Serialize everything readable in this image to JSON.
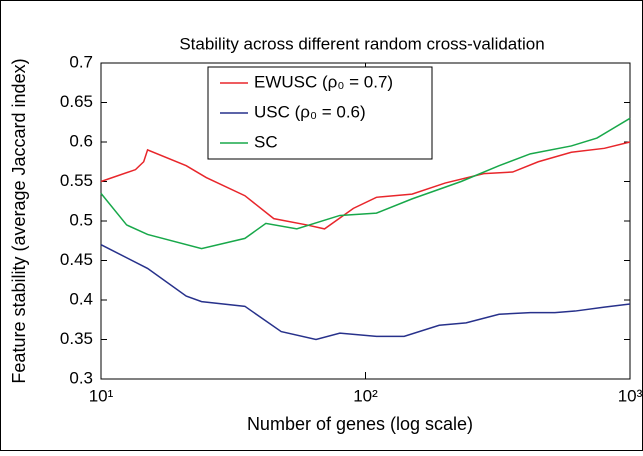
{
  "chart_data": {
    "type": "line",
    "title": "Stability across different random cross-validation",
    "xlabel": "Number of genes (log scale)",
    "ylabel": "Feature stability (average Jaccard index)",
    "xscale": "log",
    "xlim": [
      10,
      1000
    ],
    "xticks": [
      {
        "value": 10,
        "label": "10¹"
      },
      {
        "value": 100,
        "label": "10²"
      },
      {
        "value": 1000,
        "label": "10³"
      }
    ],
    "ylim": [
      0.3,
      0.7
    ],
    "yticks": [
      0.3,
      0.35,
      0.4,
      0.45,
      0.5,
      0.55,
      0.6,
      0.65,
      0.7
    ],
    "legend": "upper center",
    "series": [
      {
        "name": "EWUSC (ρ₀ = 0.7)",
        "color": "#e8262b",
        "x": [
          10,
          13.5,
          14.5,
          15,
          21,
          25,
          35,
          45,
          60,
          70,
          90,
          110,
          150,
          200,
          280,
          360,
          450,
          600,
          800,
          1000
        ],
        "values": [
          0.55,
          0.565,
          0.575,
          0.59,
          0.57,
          0.555,
          0.532,
          0.503,
          0.495,
          0.49,
          0.516,
          0.53,
          0.534,
          0.548,
          0.56,
          0.562,
          0.575,
          0.587,
          0.592,
          0.6
        ]
      },
      {
        "name": "USC (ρ₀ = 0.6)",
        "color": "#27318b",
        "x": [
          10,
          15,
          21,
          24,
          35,
          48,
          65,
          80,
          110,
          140,
          190,
          240,
          320,
          420,
          520,
          620,
          800,
          1000
        ],
        "values": [
          0.47,
          0.44,
          0.405,
          0.398,
          0.392,
          0.36,
          0.35,
          0.358,
          0.354,
          0.354,
          0.368,
          0.371,
          0.382,
          0.384,
          0.384,
          0.386,
          0.391,
          0.395
        ]
      },
      {
        "name": "SC",
        "color": "#18a84a",
        "x": [
          10,
          12.5,
          15,
          24,
          35,
          42,
          55,
          80,
          110,
          150,
          230,
          320,
          420,
          600,
          750,
          1000
        ],
        "values": [
          0.535,
          0.495,
          0.483,
          0.465,
          0.478,
          0.497,
          0.49,
          0.507,
          0.51,
          0.528,
          0.55,
          0.57,
          0.585,
          0.595,
          0.605,
          0.63
        ]
      }
    ]
  }
}
